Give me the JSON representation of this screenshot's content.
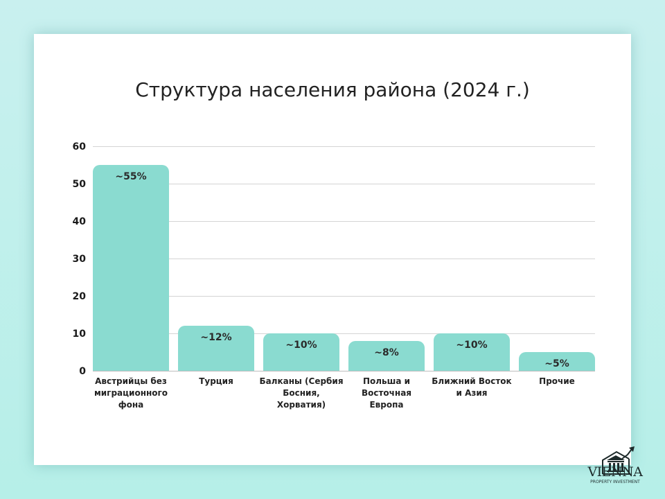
{
  "chart_data": {
    "type": "bar",
    "title": "Структура населения района (2024 г.)",
    "xlabel": "",
    "ylabel": "",
    "ylim": [
      0,
      60
    ],
    "yticks": [
      0,
      10,
      20,
      30,
      40,
      50,
      60
    ],
    "grid": true,
    "legend": null,
    "categories": [
      "Австрийцы без\nмиграционного\nфона",
      "Турция",
      "Балканы (Сербия\nБосния, Хорватия)",
      "Польша и\nВосточная Европа",
      "Ближний Восток\nи Азия",
      "Прочие"
    ],
    "values": [
      55,
      12,
      10,
      8,
      10,
      5
    ],
    "value_labels": [
      "~55%",
      "~12%",
      "~10%",
      "~8%",
      "~10%",
      "~5%"
    ],
    "bar_color": "#8adbd0"
  },
  "yticks_labels": [
    "0",
    "10",
    "20",
    "30",
    "40",
    "50",
    "60"
  ],
  "logo": {
    "name": "VIENNA",
    "subtitle": "PROPERTY INVESTMENT"
  },
  "colors": {
    "background": "#c3f0ec",
    "card": "#ffffff",
    "bar": "#8adbd0",
    "text": "#222222"
  }
}
